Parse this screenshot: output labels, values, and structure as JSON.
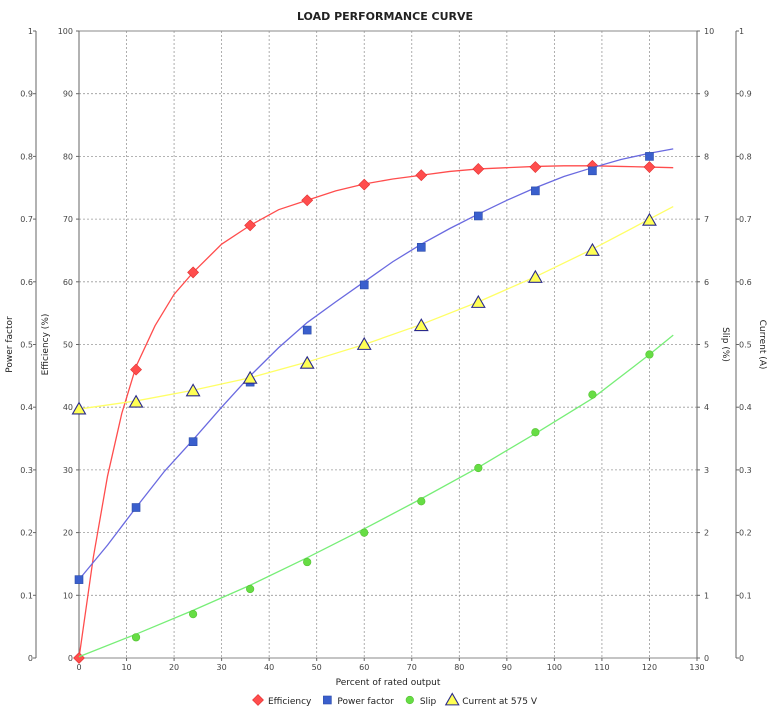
{
  "chart_data": {
    "type": "line",
    "title": "LOAD PERFORMANCE CURVE",
    "xlabel": "Percent of rated output",
    "xlim": [
      0,
      130
    ],
    "x_ticks": [
      "0",
      "10",
      "20",
      "30",
      "40",
      "50",
      "60",
      "70",
      "80",
      "90",
      "100",
      "110",
      "120",
      "130"
    ],
    "axes": {
      "power_factor": {
        "label": "Power factor",
        "lim": [
          0,
          1
        ],
        "ticks": [
          "0",
          "0.1",
          "0.2",
          "0.3",
          "0.4",
          "0.5",
          "0.6",
          "0.7",
          "0.8",
          "0.9",
          "1"
        ]
      },
      "efficiency": {
        "label": "Efficiency (%)",
        "lim": [
          0,
          100
        ],
        "ticks": [
          "0",
          "10",
          "20",
          "30",
          "40",
          "50",
          "60",
          "70",
          "80",
          "90",
          "100"
        ]
      },
      "slip": {
        "label": "Slip (%)",
        "lim": [
          0,
          10
        ],
        "ticks": [
          "0",
          "1",
          "2",
          "3",
          "4",
          "5",
          "6",
          "7",
          "8",
          "9",
          "10"
        ]
      },
      "current": {
        "label": "Current (A)",
        "lim": [
          0,
          1
        ],
        "ticks": [
          "0",
          "0.1",
          "0.2",
          "0.3",
          "0.4",
          "0.5",
          "0.6",
          "0.7",
          "0.8",
          "0.9",
          "1"
        ]
      }
    },
    "grid": true,
    "legend_position": "bottom",
    "series": [
      {
        "name": "Efficiency",
        "axis": "efficiency",
        "color": "#ff4d4d",
        "marker": "diamond",
        "x": [
          0,
          12,
          24,
          36,
          48,
          60,
          72,
          84,
          96,
          108,
          120
        ],
        "values": [
          0,
          46,
          61.5,
          69,
          73,
          75.5,
          77,
          78,
          78.3,
          78.5,
          78.3
        ],
        "curve_x": [
          0,
          3,
          6,
          9,
          12,
          16,
          20,
          24,
          30,
          36,
          42,
          48,
          54,
          60,
          66,
          72,
          78,
          84,
          90,
          96,
          102,
          108,
          114,
          120,
          125
        ],
        "curve_y": [
          0,
          16,
          29,
          39,
          46.5,
          53,
          58,
          61.5,
          66,
          69,
          71.5,
          73,
          74.5,
          75.6,
          76.4,
          77,
          77.6,
          78,
          78.2,
          78.4,
          78.5,
          78.5,
          78.4,
          78.3,
          78.2
        ]
      },
      {
        "name": "Power factor",
        "axis": "power_factor",
        "color": "#3a5fcd",
        "line_color": "#6a6ae0",
        "marker": "square",
        "x": [
          0,
          12,
          24,
          36,
          48,
          60,
          72,
          84,
          96,
          108,
          120
        ],
        "values": [
          0.125,
          0.24,
          0.345,
          0.44,
          0.523,
          0.595,
          0.655,
          0.705,
          0.745,
          0.777,
          0.8
        ],
        "curve_x": [
          0,
          6,
          12,
          18,
          24,
          30,
          36,
          42,
          48,
          54,
          60,
          66,
          72,
          78,
          84,
          90,
          96,
          102,
          108,
          114,
          120,
          125
        ],
        "curve_y": [
          0.125,
          0.18,
          0.24,
          0.298,
          0.348,
          0.4,
          0.45,
          0.495,
          0.535,
          0.568,
          0.6,
          0.632,
          0.66,
          0.685,
          0.708,
          0.73,
          0.75,
          0.768,
          0.782,
          0.795,
          0.805,
          0.812
        ]
      },
      {
        "name": "Slip",
        "axis": "slip",
        "color": "#66dd44",
        "line_color": "#77ee77",
        "marker": "circle",
        "x": [
          12,
          24,
          36,
          48,
          60,
          72,
          84,
          96,
          108,
          120
        ],
        "values": [
          0.33,
          0.7,
          1.1,
          1.53,
          2.0,
          2.5,
          3.03,
          3.6,
          4.2,
          4.84
        ],
        "curve_x": [
          0,
          12,
          24,
          36,
          48,
          60,
          72,
          84,
          96,
          108,
          120,
          125
        ],
        "curve_y": [
          0.02,
          0.38,
          0.76,
          1.16,
          1.6,
          2.06,
          2.54,
          3.04,
          3.58,
          4.14,
          4.84,
          5.15
        ]
      },
      {
        "name": "Current at 575 V",
        "axis": "current",
        "color": "#ffff55",
        "line_color": "#ffff66",
        "marker_stroke": "#2a2a8a",
        "marker": "triangle",
        "x": [
          0,
          12,
          24,
          36,
          48,
          60,
          72,
          84,
          96,
          108,
          120
        ],
        "values": [
          0.397,
          0.408,
          0.426,
          0.446,
          0.47,
          0.5,
          0.53,
          0.567,
          0.607,
          0.65,
          0.698
        ],
        "curve_x": [
          0,
          12,
          24,
          36,
          48,
          60,
          72,
          84,
          96,
          108,
          120,
          125
        ],
        "curve_y": [
          0.397,
          0.41,
          0.427,
          0.447,
          0.472,
          0.5,
          0.532,
          0.568,
          0.608,
          0.652,
          0.7,
          0.72
        ]
      }
    ]
  }
}
